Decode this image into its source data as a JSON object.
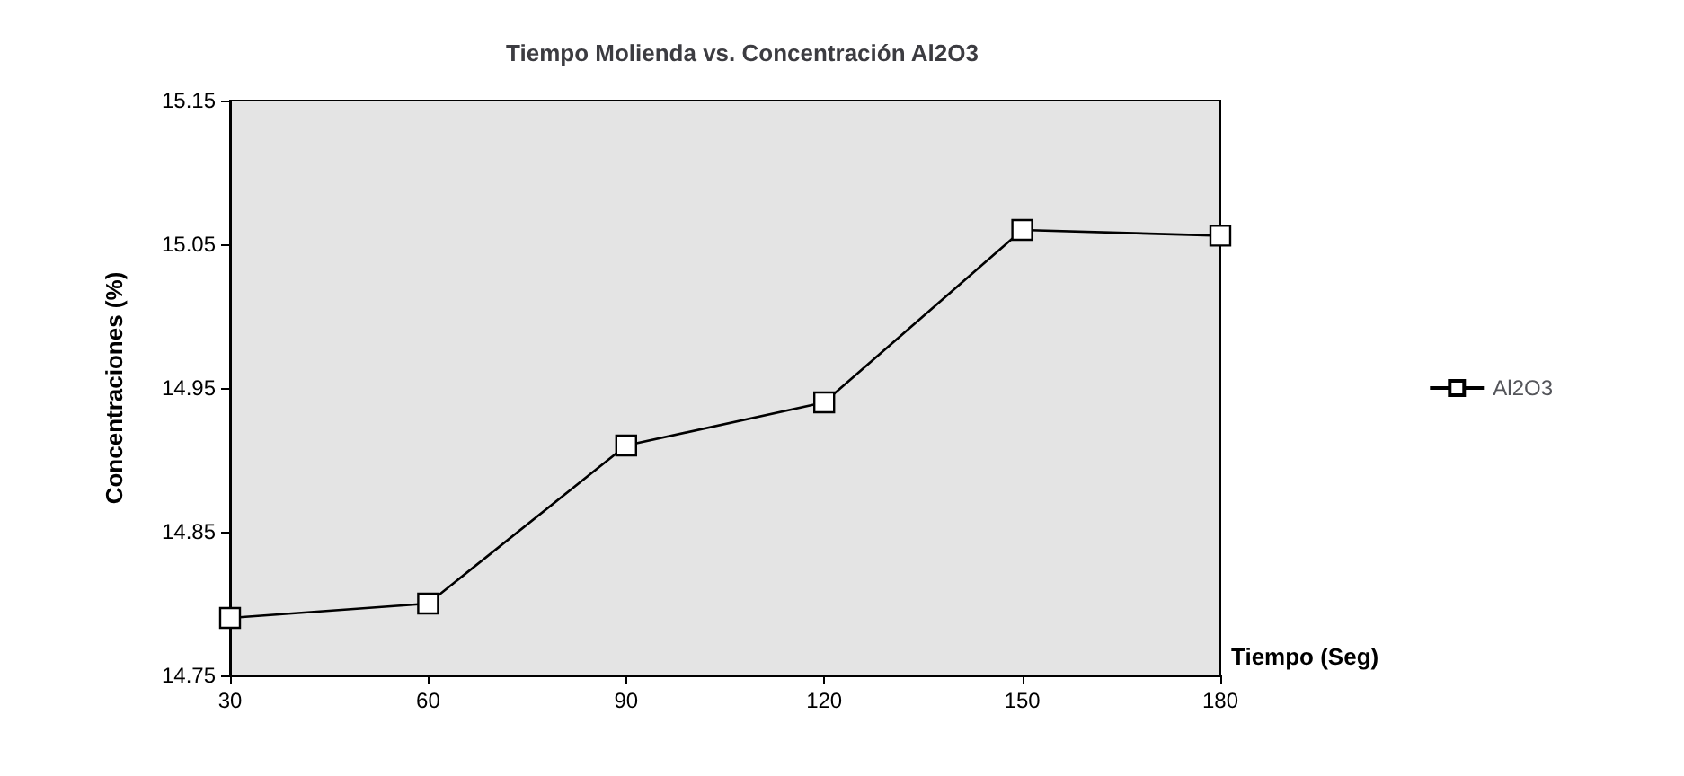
{
  "chart_data": {
    "type": "line",
    "title": "Tiempo Molienda vs. Concentración Al2O3",
    "xlabel": "Tiempo (Seg)",
    "ylabel": "Concentraciones (%)",
    "x": [
      30,
      60,
      90,
      120,
      150,
      180
    ],
    "series": [
      {
        "name": "Al2O3",
        "color": "#000000",
        "values": [
          14.79,
          14.8,
          14.91,
          14.94,
          15.06,
          15.056
        ]
      }
    ],
    "xlim": [
      30,
      180
    ],
    "xticks": [
      30,
      60,
      90,
      120,
      150,
      180
    ],
    "ylim": [
      14.75,
      15.15
    ],
    "yticks": [
      14.75,
      14.85,
      14.95,
      15.05,
      15.15
    ],
    "grid": false,
    "legend": "right",
    "marker": "square",
    "line_style": "solid"
  }
}
